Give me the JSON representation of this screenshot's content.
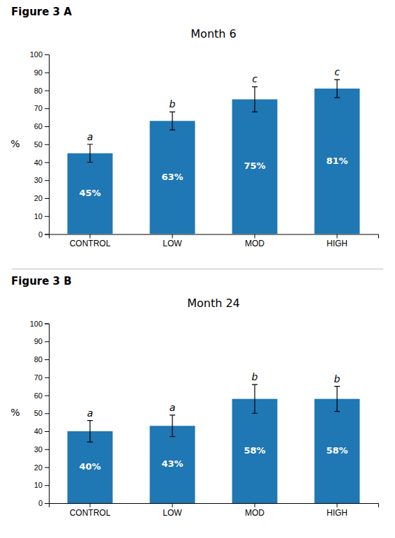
{
  "chart_data": [
    {
      "type": "bar",
      "title": "Figure 3 A",
      "subtitle": "Month 6",
      "ylabel": "%",
      "categories": [
        "CONTROL",
        "LOW",
        "MOD",
        "HIGH"
      ],
      "values": [
        45,
        63,
        75,
        81
      ],
      "errors": [
        5,
        5,
        7,
        5
      ],
      "data_labels": true,
      "value_labels": [
        "45%",
        "63%",
        "75%",
        "81%"
      ],
      "annotations": [
        "a",
        "b",
        "c",
        "c"
      ],
      "ylim": [
        0,
        100
      ],
      "yticks": [
        0,
        10,
        20,
        30,
        40,
        50,
        60,
        70,
        80,
        90,
        100
      ],
      "grid": false
    },
    {
      "type": "bar",
      "title": "Figure 3  B",
      "subtitle": "Month 24",
      "ylabel": "%",
      "categories": [
        "CONTROL",
        "LOW",
        "MOD",
        "HIGH"
      ],
      "values": [
        40,
        43,
        58,
        58
      ],
      "errors": [
        6,
        6,
        8,
        7
      ],
      "data_labels": true,
      "value_labels": [
        "40%",
        "43%",
        "58%",
        "58%"
      ],
      "annotations": [
        "a",
        "a",
        "b",
        "b"
      ],
      "ylim": [
        0,
        100
      ],
      "yticks": [
        0,
        10,
        20,
        30,
        40,
        50,
        60,
        70,
        80,
        90,
        100
      ],
      "grid": false
    }
  ]
}
